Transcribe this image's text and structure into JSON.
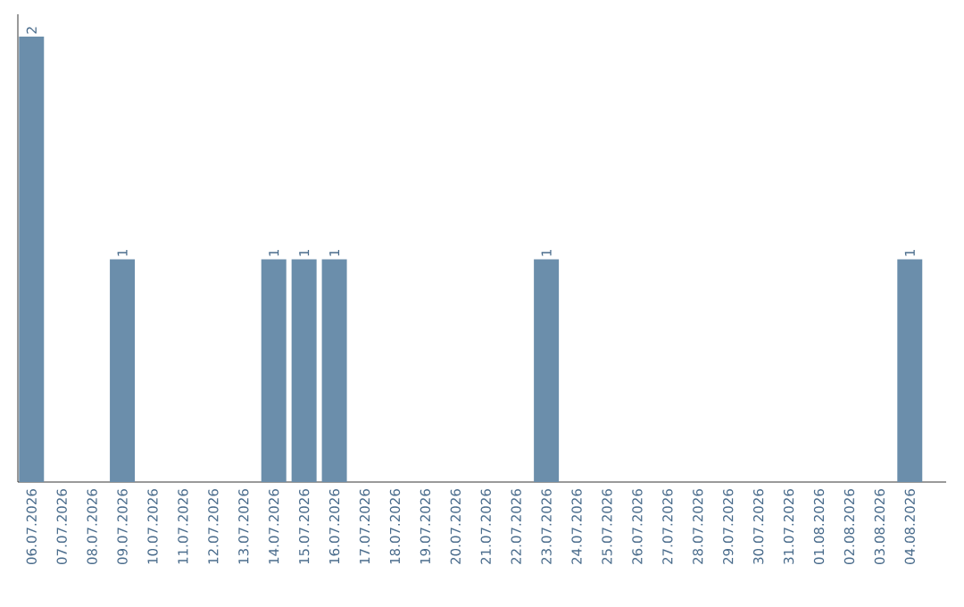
{
  "chart_data": {
    "type": "bar",
    "categories": [
      "06.07.2026",
      "07.07.2026",
      "08.07.2026",
      "09.07.2026",
      "10.07.2026",
      "11.07.2026",
      "12.07.2026",
      "13.07.2026",
      "14.07.2026",
      "15.07.2026",
      "16.07.2026",
      "17.07.2026",
      "18.07.2026",
      "19.07.2026",
      "20.07.2026",
      "21.07.2026",
      "22.07.2026",
      "23.07.2026",
      "24.07.2026",
      "25.07.2026",
      "26.07.2026",
      "27.07.2026",
      "28.07.2026",
      "29.07.2026",
      "30.07.2026",
      "31.07.2026",
      "01.08.2026",
      "02.08.2026",
      "03.08.2026",
      "04.08.2026"
    ],
    "values": [
      2,
      0,
      0,
      1,
      0,
      0,
      0,
      0,
      1,
      1,
      1,
      0,
      0,
      0,
      0,
      0,
      0,
      1,
      0,
      0,
      0,
      0,
      0,
      0,
      0,
      0,
      0,
      0,
      0,
      1
    ],
    "value_labels": [
      "2",
      null,
      null,
      "1",
      null,
      null,
      null,
      null,
      "1",
      "1",
      "1",
      null,
      null,
      null,
      null,
      null,
      null,
      "1",
      null,
      null,
      null,
      null,
      null,
      null,
      null,
      null,
      null,
      null,
      null,
      "1"
    ],
    "color": "#6b8eab",
    "ylim": [
      0,
      2.1
    ]
  }
}
